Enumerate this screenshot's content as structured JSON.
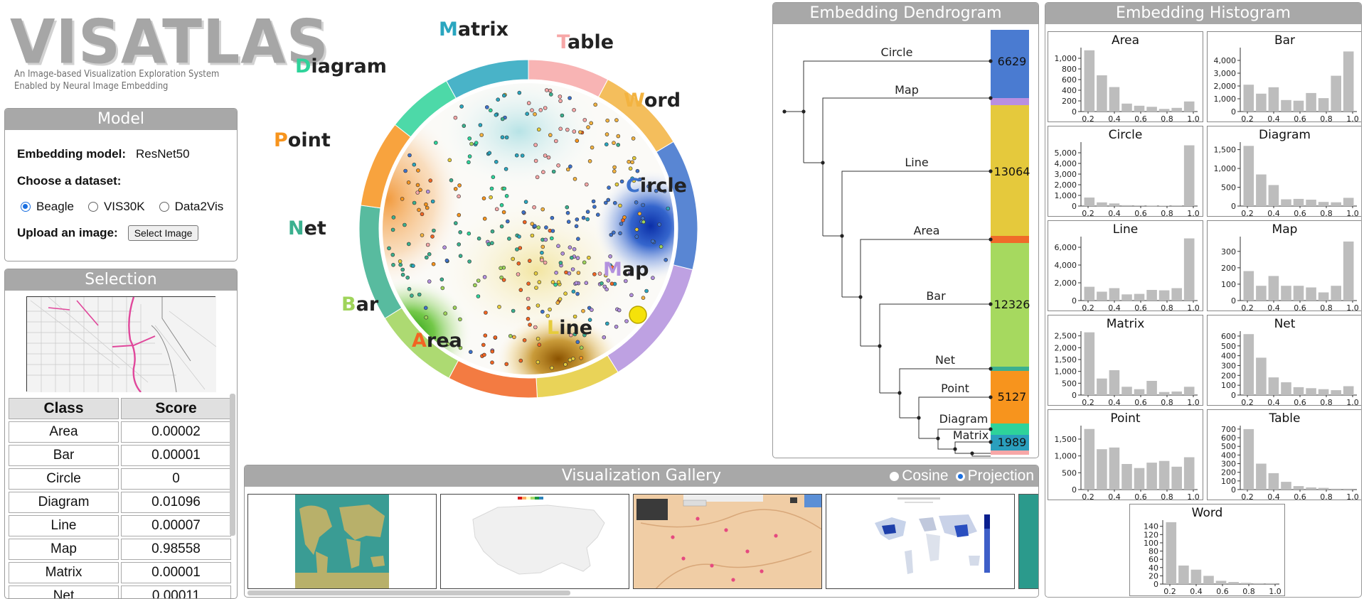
{
  "logo": {
    "title": "VISATLAS",
    "subtitle_line1": "An Image-based Visualization Exploration System",
    "subtitle_line2": "Enabled by Neural Image Embedding"
  },
  "model": {
    "title": "Model",
    "embedding_label": "Embedding model:",
    "embedding_value": "ResNet50",
    "dataset_label": "Choose a dataset:",
    "datasets": [
      "Beagle",
      "VIS30K",
      "Data2Vis"
    ],
    "selected_dataset": "Beagle",
    "upload_label": "Upload an image:",
    "upload_button": "Select Image"
  },
  "selection": {
    "title": "Selection",
    "col_class": "Class",
    "col_score": "Score",
    "rows": [
      {
        "cls": "Area",
        "score": "0.00002"
      },
      {
        "cls": "Bar",
        "score": "0.00001"
      },
      {
        "cls": "Circle",
        "score": "0"
      },
      {
        "cls": "Diagram",
        "score": "0.01096"
      },
      {
        "cls": "Line",
        "score": "0.00007"
      },
      {
        "cls": "Map",
        "score": "0.98558"
      },
      {
        "cls": "Matrix",
        "score": "0.00001"
      },
      {
        "cls": "Net",
        "score": "0.00011"
      }
    ]
  },
  "wheel": {
    "categories": [
      {
        "name": "Matrix",
        "initial": "M",
        "rest": "atrix",
        "color": "#2aa6bf"
      },
      {
        "name": "Table",
        "initial": "T",
        "rest": "able",
        "color": "#f7a7a7"
      },
      {
        "name": "Word",
        "initial": "W",
        "rest": "ord",
        "color": "#f3b340"
      },
      {
        "name": "Circle",
        "initial": "C",
        "rest": "ircle",
        "color": "#3d72cc"
      },
      {
        "name": "Map",
        "initial": "M",
        "rest": "ap",
        "color": "#b391de"
      },
      {
        "name": "Line",
        "initial": "L",
        "rest": "ine",
        "color": "#e6cc3b"
      },
      {
        "name": "Area",
        "initial": "A",
        "rest": "rea",
        "color": "#f26522"
      },
      {
        "name": "Bar",
        "initial": "B",
        "rest": "ar",
        "color": "#9fd45a"
      },
      {
        "name": "Net",
        "initial": "N",
        "rest": "et",
        "color": "#3bb08f"
      },
      {
        "name": "Point",
        "initial": "P",
        "rest": "oint",
        "color": "#f7941d"
      },
      {
        "name": "Diagram",
        "initial": "D",
        "rest": "iagram",
        "color": "#2ed39a"
      }
    ]
  },
  "dendrogram": {
    "title": "Embedding Dendrogram",
    "leaves": [
      "Circle",
      "Map",
      "Line",
      "Area",
      "Bar",
      "Net",
      "Point",
      "Diagram",
      "Matrix"
    ],
    "counts": [
      {
        "label": "6629"
      },
      {
        "label": "13064"
      },
      {
        "label": "12326"
      },
      {
        "label": "5127"
      },
      {
        "label": "1989"
      }
    ]
  },
  "histogram": {
    "title": "Embedding Histogram",
    "charts": [
      {
        "name": "Area",
        "ylim": [
          0,
          1200
        ],
        "yticks": [
          "1,000",
          "800",
          "600",
          "400",
          "200",
          "0"
        ],
        "values": [
          1150,
          680,
          460,
          150,
          110,
          90,
          50,
          70,
          190
        ]
      },
      {
        "name": "Bar",
        "ylim": [
          0,
          5000
        ],
        "yticks": [
          "4,000",
          "3,000",
          "2,000",
          "1,000",
          "0"
        ],
        "values": [
          2100,
          1400,
          1900,
          900,
          850,
          1450,
          1050,
          2800,
          4700
        ]
      },
      {
        "name": "Circle",
        "ylim": [
          0,
          6000
        ],
        "yticks": [
          "5,000",
          "4,000",
          "3,000",
          "2,000",
          "1,000",
          "0"
        ],
        "values": [
          800,
          350,
          250,
          80,
          60,
          50,
          40,
          60,
          5700
        ]
      },
      {
        "name": "Diagram",
        "ylim": [
          0,
          1700
        ],
        "yticks": [
          "1,500",
          "1,000",
          "500",
          "0"
        ],
        "values": [
          1600,
          840,
          560,
          180,
          190,
          170,
          110,
          100,
          220
        ]
      },
      {
        "name": "Line",
        "ylim": [
          0,
          7200
        ],
        "yticks": [
          "6,000",
          "4,000",
          "2,000",
          "0"
        ],
        "values": [
          1550,
          1000,
          1400,
          700,
          750,
          1200,
          1150,
          1400,
          7000
        ]
      },
      {
        "name": "Map",
        "ylim": [
          0,
          390
        ],
        "yticks": [
          "300",
          "200",
          "100",
          "0"
        ],
        "values": [
          180,
          90,
          150,
          90,
          90,
          80,
          50,
          90,
          360
        ]
      },
      {
        "name": "Matrix",
        "ylim": [
          0,
          2700
        ],
        "yticks": [
          "2,500",
          "2,000",
          "1,500",
          "1,000",
          "500",
          "0"
        ],
        "values": [
          2650,
          700,
          1050,
          350,
          250,
          600,
          130,
          150,
          350
        ]
      },
      {
        "name": "Net",
        "ylim": [
          0,
          650
        ],
        "yticks": [
          "600",
          "500",
          "400",
          "300",
          "200",
          "100",
          "0"
        ],
        "values": [
          620,
          380,
          180,
          130,
          80,
          70,
          60,
          50,
          90
        ]
      },
      {
        "name": "Point",
        "ylim": [
          0,
          1900
        ],
        "yticks": [
          "1,500",
          "1,000",
          "500",
          "0"
        ],
        "values": [
          1800,
          1200,
          1250,
          760,
          640,
          800,
          850,
          680,
          960
        ]
      },
      {
        "name": "Table",
        "ylim": [
          0,
          740
        ],
        "yticks": [
          "700",
          "600",
          "500",
          "400",
          "300",
          "200",
          "100",
          "0"
        ],
        "values": [
          700,
          300,
          190,
          90,
          40,
          25,
          20,
          10,
          10
        ]
      },
      {
        "name": "Word",
        "ylim": [
          0,
          155
        ],
        "yticks": [
          "140",
          "120",
          "100",
          "80",
          "60",
          "40",
          "20",
          "0"
        ],
        "values": [
          150,
          45,
          35,
          20,
          8,
          5,
          3,
          2,
          2
        ]
      }
    ],
    "xticks": [
      "0.2",
      "0.4",
      "0.6",
      "0.8",
      "1.0"
    ]
  },
  "gallery": {
    "title": "Visualization Gallery",
    "option_cosine": "Cosine",
    "option_projection": "Projection",
    "selected": "Projection"
  }
}
